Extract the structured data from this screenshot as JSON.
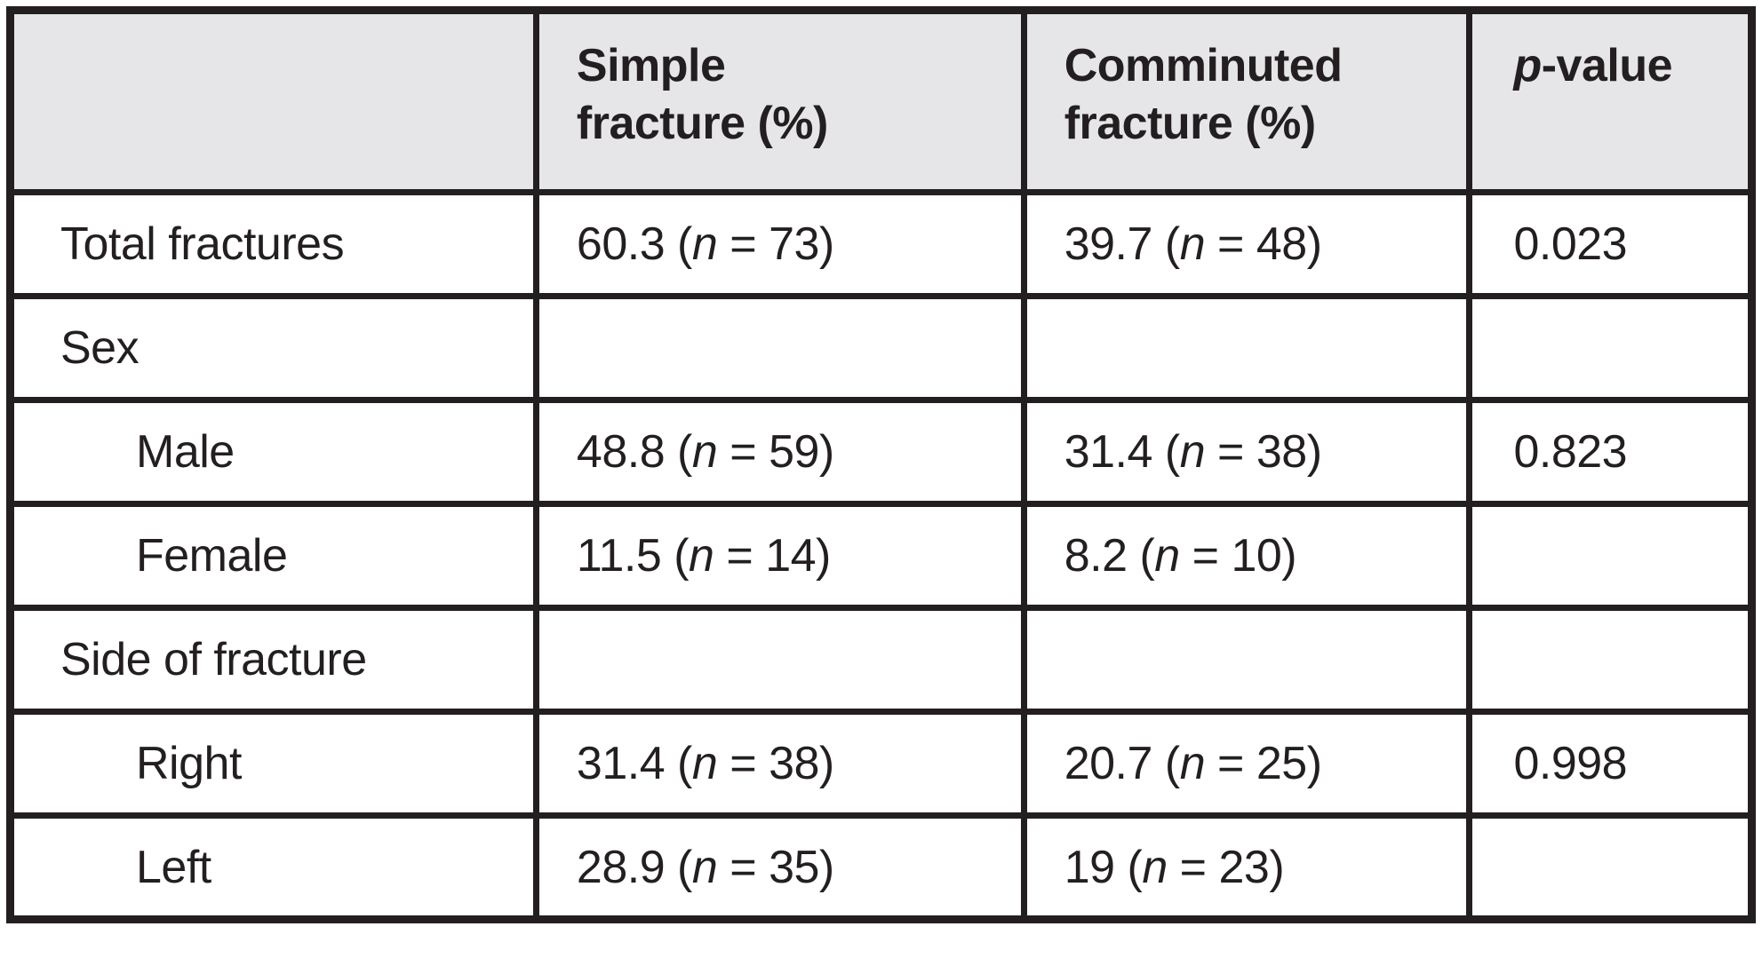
{
  "chart_data": {
    "type": "table",
    "columns": [
      "",
      "Simple fracture (%)",
      "Comminuted fracture (%)",
      "p-value"
    ],
    "rows": [
      [
        "Total fractures",
        "60.3 (n = 73)",
        "39.7 (n = 48)",
        "0.023"
      ],
      [
        "Sex",
        "",
        "",
        ""
      ],
      [
        "Male",
        "48.8 (n = 59)",
        "31.4 (n = 38)",
        "0.823"
      ],
      [
        "Female",
        "11.5 (n = 14)",
        "8.2 (n = 10)",
        ""
      ],
      [
        "Side of fracture",
        "",
        "",
        ""
      ],
      [
        "Right",
        "31.4 (n = 38)",
        "20.7 (n = 25)",
        "0.998"
      ],
      [
        "Left",
        "28.9 (n = 35)",
        "19 (n = 23)",
        ""
      ]
    ],
    "layout_hints": {
      "header_row_shaded": true,
      "sub_rows_indented": [
        "Male",
        "Female",
        "Right",
        "Left"
      ]
    }
  },
  "table": {
    "header": {
      "col0": "",
      "col1": "Simple\nfracture (%)",
      "col2": "Comminuted\nfracture (%)",
      "col3": "*p*-value"
    },
    "rows": [
      {
        "label": "Total fractures",
        "simple": "60.3 (*n* = 73)",
        "comminuted": "39.7 (*n* = 48)",
        "p": "0.023"
      },
      {
        "label": "Sex",
        "simple": "",
        "comminuted": "",
        "p": ""
      },
      {
        "label": "Male",
        "simple": "48.8 (*n* = 59)",
        "comminuted": "31.4 (*n* = 38)",
        "p": "0.823"
      },
      {
        "label": "Female",
        "simple": "11.5 (*n* = 14)",
        "comminuted": "8.2 (*n* = 10)",
        "p": ""
      },
      {
        "label": "Side of fracture",
        "simple": "",
        "comminuted": "",
        "p": ""
      },
      {
        "label": "Right",
        "simple": "31.4 (*n* = 38)",
        "comminuted": "20.7 (*n* = 25)",
        "p": "0.998"
      },
      {
        "label": "Left",
        "simple": "28.9 (*n* = 35)",
        "comminuted": "19 (*n* = 23)",
        "p": ""
      }
    ],
    "colors": {
      "border": "#231f20",
      "text": "#231f20",
      "header_bg": "#e6e6e8",
      "page_bg": "#ffffff"
    }
  }
}
